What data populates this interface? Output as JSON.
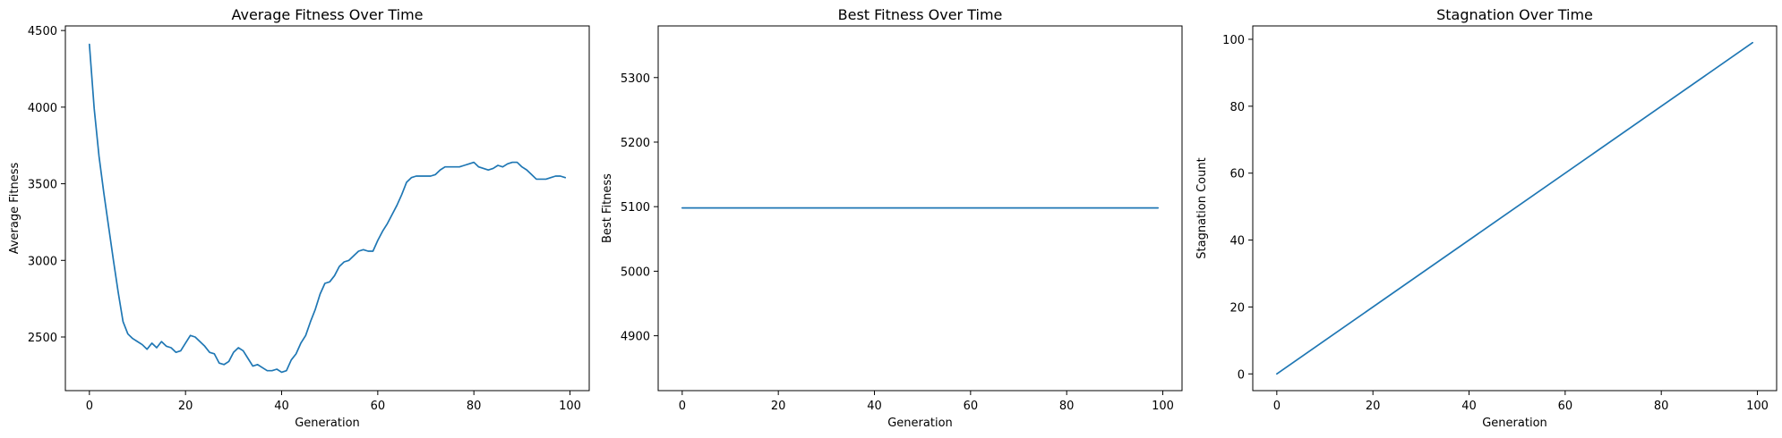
{
  "chart_data": [
    {
      "type": "line",
      "title": "Average Fitness Over Time",
      "xlabel": "Generation",
      "ylabel": "Average Fitness",
      "xlim": [
        -5,
        104
      ],
      "ylim": [
        2150,
        4530
      ],
      "xticks": [
        0,
        20,
        40,
        60,
        80,
        100
      ],
      "yticks": [
        2500,
        3000,
        3500,
        4000,
        4500
      ],
      "grid": false,
      "legend": false,
      "series": [
        {
          "color": "#1f77b4",
          "x": [
            0,
            1,
            2,
            3,
            4,
            5,
            6,
            7,
            8,
            9,
            10,
            11,
            12,
            13,
            14,
            15,
            16,
            17,
            18,
            19,
            20,
            21,
            22,
            23,
            24,
            25,
            26,
            27,
            28,
            29,
            30,
            31,
            32,
            33,
            34,
            35,
            36,
            37,
            38,
            39,
            40,
            41,
            42,
            43,
            44,
            45,
            46,
            47,
            48,
            49,
            50,
            51,
            52,
            53,
            54,
            55,
            56,
            57,
            58,
            59,
            60,
            61,
            62,
            63,
            64,
            65,
            66,
            67,
            68,
            69,
            70,
            71,
            72,
            73,
            74,
            75,
            76,
            77,
            78,
            79,
            80,
            81,
            82,
            83,
            84,
            85,
            86,
            87,
            88,
            89,
            90,
            91,
            92,
            93,
            94,
            95,
            96,
            97,
            98,
            99
          ],
          "y": [
            4410,
            3990,
            3680,
            3440,
            3220,
            3000,
            2790,
            2600,
            2520,
            2490,
            2470,
            2450,
            2420,
            2460,
            2430,
            2470,
            2440,
            2430,
            2400,
            2410,
            2460,
            2510,
            2500,
            2470,
            2440,
            2400,
            2390,
            2330,
            2320,
            2340,
            2400,
            2430,
            2410,
            2360,
            2310,
            2320,
            2300,
            2280,
            2280,
            2290,
            2270,
            2280,
            2350,
            2390,
            2460,
            2510,
            2600,
            2680,
            2780,
            2850,
            2860,
            2900,
            2960,
            2990,
            3000,
            3030,
            3060,
            3070,
            3060,
            3060,
            3130,
            3190,
            3240,
            3300,
            3360,
            3430,
            3510,
            3540,
            3550,
            3550,
            3550,
            3550,
            3560,
            3590,
            3610,
            3610,
            3610,
            3610,
            3620,
            3630,
            3640,
            3610,
            3600,
            3590,
            3600,
            3620,
            3610,
            3630,
            3640,
            3640,
            3610,
            3590,
            3560,
            3530,
            3530,
            3530,
            3540,
            3550,
            3550,
            3540
          ]
        }
      ]
    },
    {
      "type": "line",
      "title": "Best Fitness Over Time",
      "xlabel": "Generation",
      "ylabel": "Best Fitness",
      "xlim": [
        -5,
        104
      ],
      "ylim": [
        4815,
        5380
      ],
      "xticks": [
        0,
        20,
        40,
        60,
        80,
        100
      ],
      "yticks": [
        4900,
        5000,
        5100,
        5200,
        5300
      ],
      "grid": false,
      "legend": false,
      "series": [
        {
          "color": "#1f77b4",
          "x": [
            0,
            99
          ],
          "y": [
            5098,
            5098
          ]
        }
      ]
    },
    {
      "type": "line",
      "title": "Stagnation Over Time",
      "xlabel": "Generation",
      "ylabel": "Stagnation Count",
      "xlim": [
        -5,
        104
      ],
      "ylim": [
        -5,
        104
      ],
      "xticks": [
        0,
        20,
        40,
        60,
        80,
        100
      ],
      "yticks": [
        0,
        20,
        40,
        60,
        80,
        100
      ],
      "grid": false,
      "legend": false,
      "series": [
        {
          "color": "#1f77b4",
          "x": [
            0,
            99
          ],
          "y": [
            0,
            99
          ]
        }
      ]
    }
  ]
}
